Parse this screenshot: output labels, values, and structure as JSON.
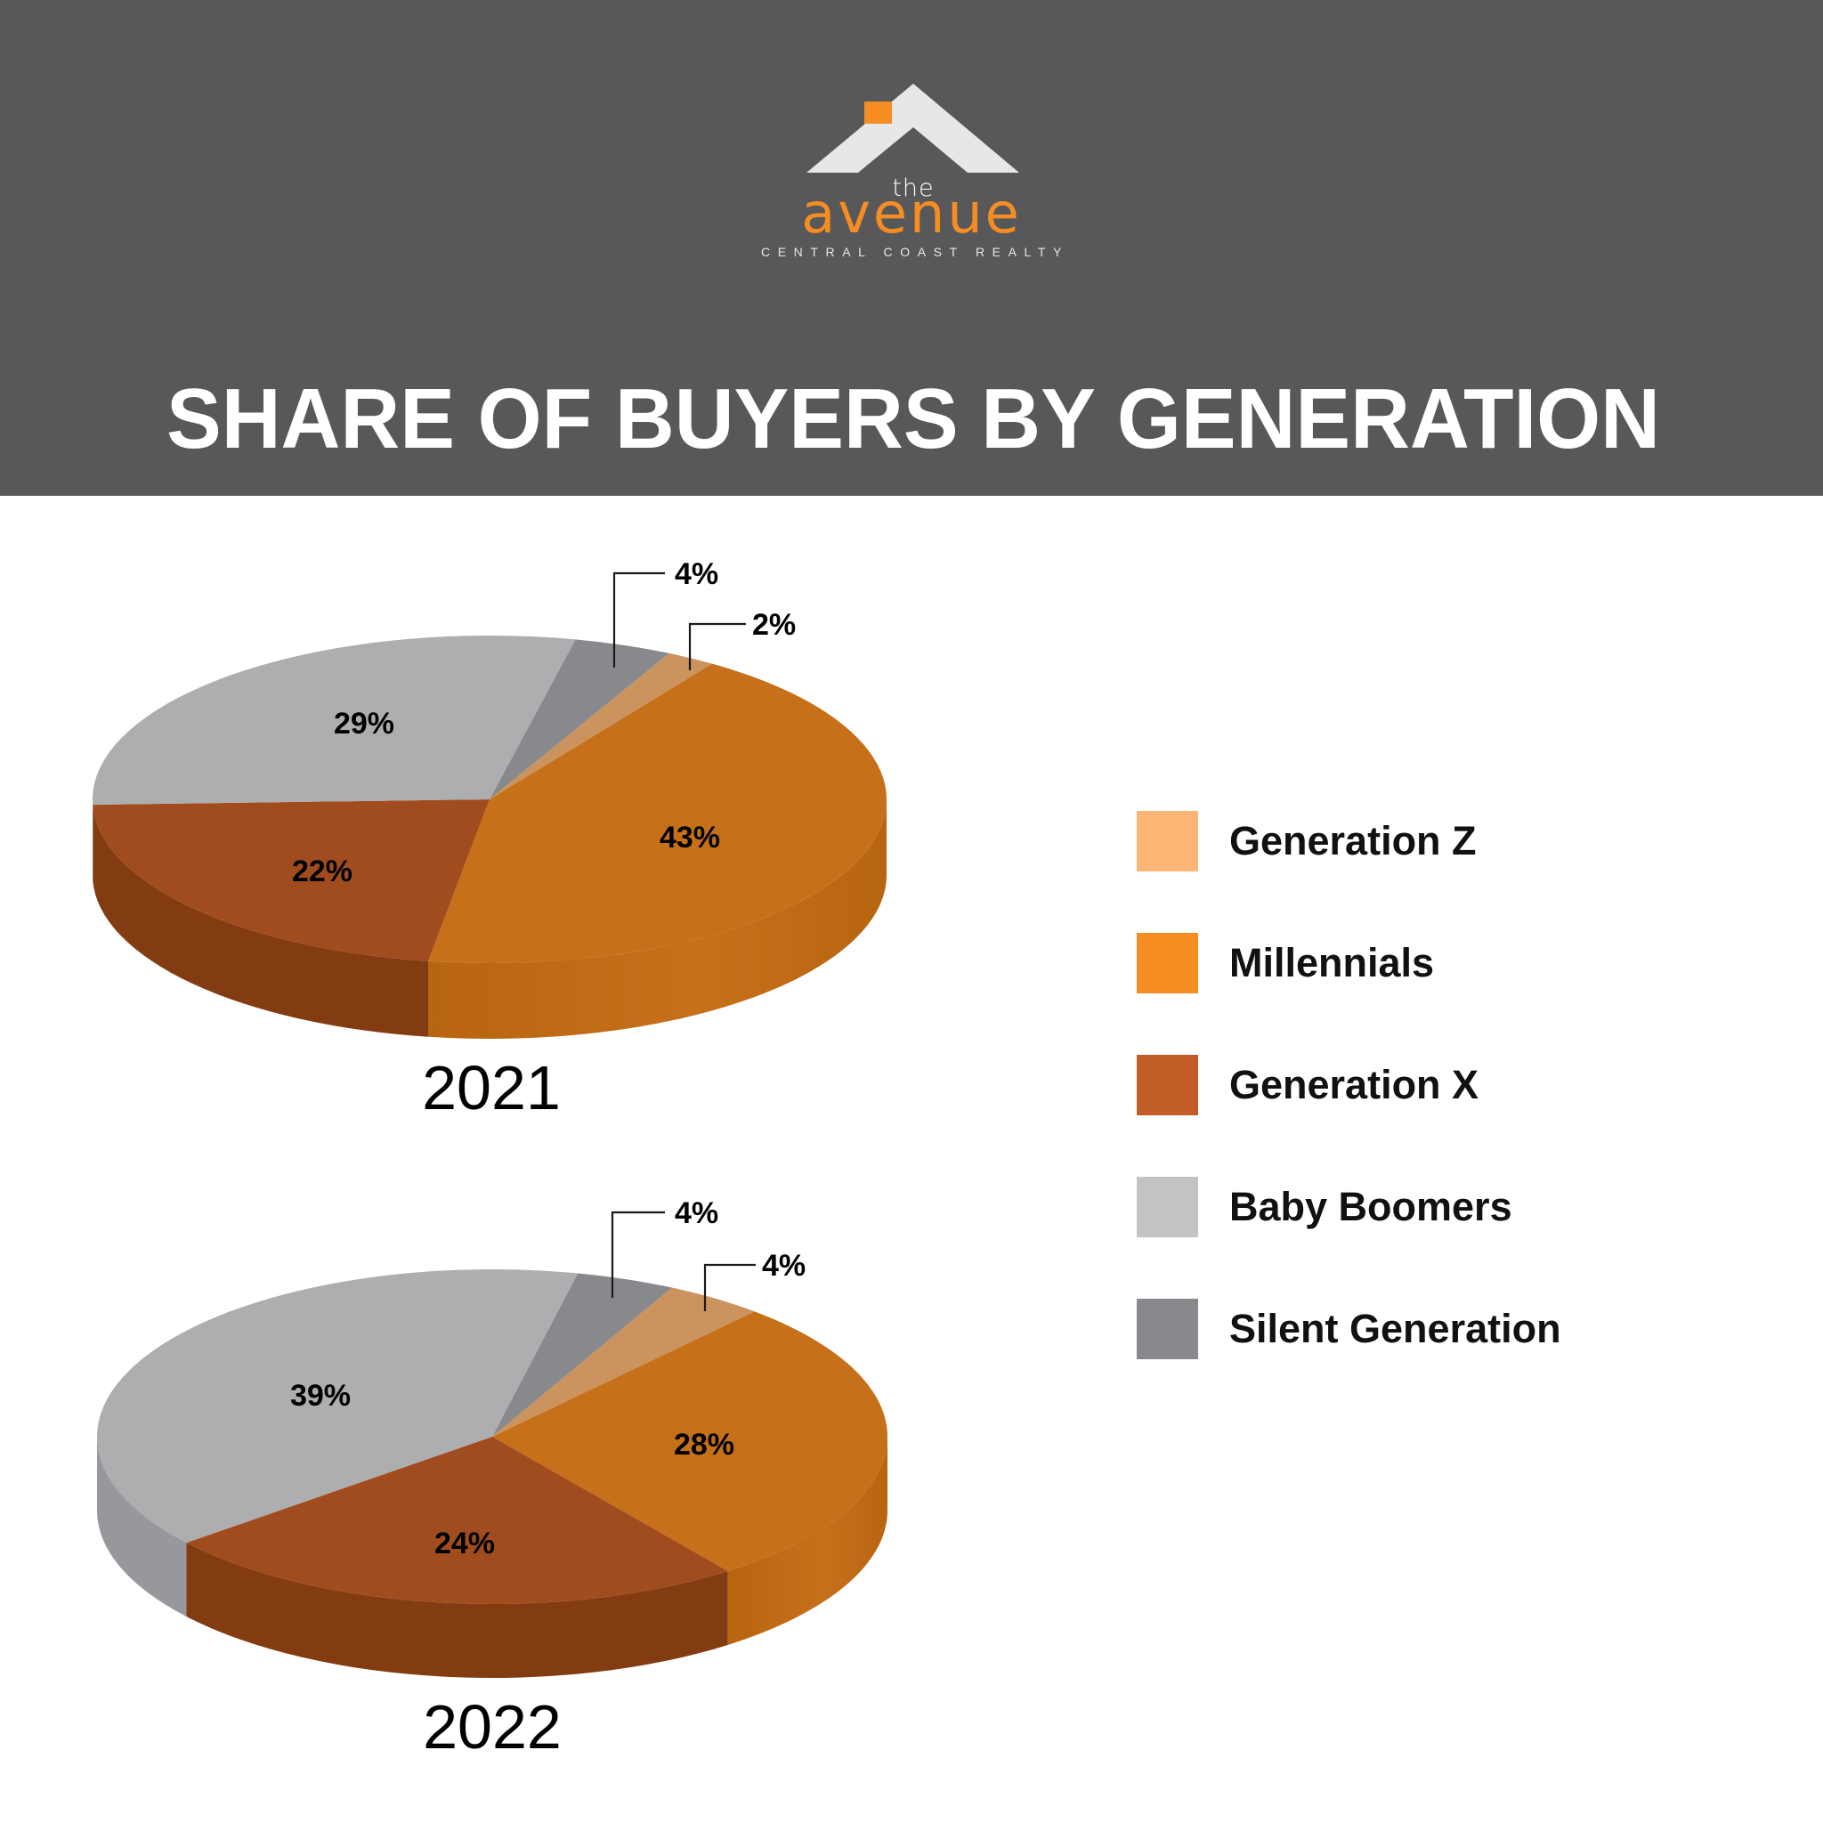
{
  "brand": {
    "the": "the",
    "name": "avenue",
    "tagline": "CENTRAL COAST REALTY",
    "roof_color": "#E6E7E8",
    "accent_color": "#F58D23"
  },
  "header": {
    "title": "SHARE OF BUYERS BY GENERATION",
    "background": "#58585A"
  },
  "legend": {
    "items": [
      {
        "label": "Generation Z",
        "color": "#FBB676"
      },
      {
        "label": "Millennials",
        "color": "#F58D23"
      },
      {
        "label": "Generation X",
        "color": "#C35D28"
      },
      {
        "label": "Baby Boomers",
        "color": "#C2C3C5"
      },
      {
        "label": "Silent Generation",
        "color": "#88898C"
      }
    ]
  },
  "chart_data": [
    {
      "type": "pie",
      "title": "2021",
      "subtitle": "Share of Buyers by Generation",
      "categories": [
        "Silent Generation",
        "Generation Z",
        "Millennials",
        "Generation X",
        "Baby Boomers"
      ],
      "values": [
        4,
        2,
        43,
        22,
        29
      ],
      "labels": [
        "4%",
        "2%",
        "43%",
        "22%",
        "29%"
      ],
      "unit": "%",
      "legend_position": "right",
      "style": "3d"
    },
    {
      "type": "pie",
      "title": "2022",
      "subtitle": "Share of Buyers by Generation",
      "categories": [
        "Silent Generation",
        "Generation Z",
        "Millennials",
        "Generation X",
        "Baby Boomers"
      ],
      "values": [
        4,
        4,
        28,
        24,
        39
      ],
      "labels": [
        "4%",
        "4%",
        "28%",
        "24%",
        "39%"
      ],
      "unit": "%",
      "legend_position": "right",
      "style": "3d"
    }
  ],
  "pie_colors": {
    "Silent Generation": {
      "top": "#88898C",
      "side": "#77787B"
    },
    "Generation Z": {
      "top": "#CB935E",
      "side": "#B98250"
    },
    "Millennials": {
      "top": "#C6701A",
      "side": "#B8650F"
    },
    "Generation X": {
      "top": "#A14C1E",
      "side": "#833C12"
    },
    "Baby Boomers": {
      "top": "#ADAEB0",
      "side": "#97989B"
    }
  }
}
